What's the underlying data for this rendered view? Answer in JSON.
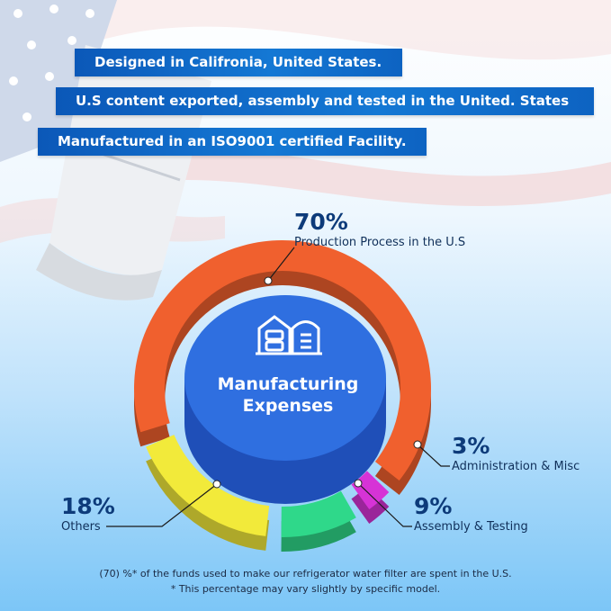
{
  "banners": [
    "Designed in Califronia, United States.",
    "U.S content exported, assembly and tested in the United. States",
    "Manufactured in an ISO9001 certified Facility."
  ],
  "center": {
    "icon": "factory-building-icon",
    "line1": "Manufacturing",
    "line2": "Expenses",
    "color": "#2f6fe0"
  },
  "chart_data": {
    "type": "pie",
    "variant": "donut-3d",
    "title": "Manufacturing Expenses",
    "categories": [
      "Production Process in the U.S",
      "Administration & Misc",
      "Assembly & Testing",
      "Others"
    ],
    "values": [
      70,
      3,
      9,
      18
    ],
    "labels": [
      "70%",
      "3%",
      "9%",
      "18%"
    ],
    "colors": [
      "#f0602e",
      "#d633d6",
      "#2fd88a",
      "#f2ea3a"
    ]
  },
  "footer": {
    "line1": "(70) %* of the funds used to make our refrigerator water filter are spent in the U.S.",
    "line2": "* This percentage may vary slightly by specific model."
  }
}
